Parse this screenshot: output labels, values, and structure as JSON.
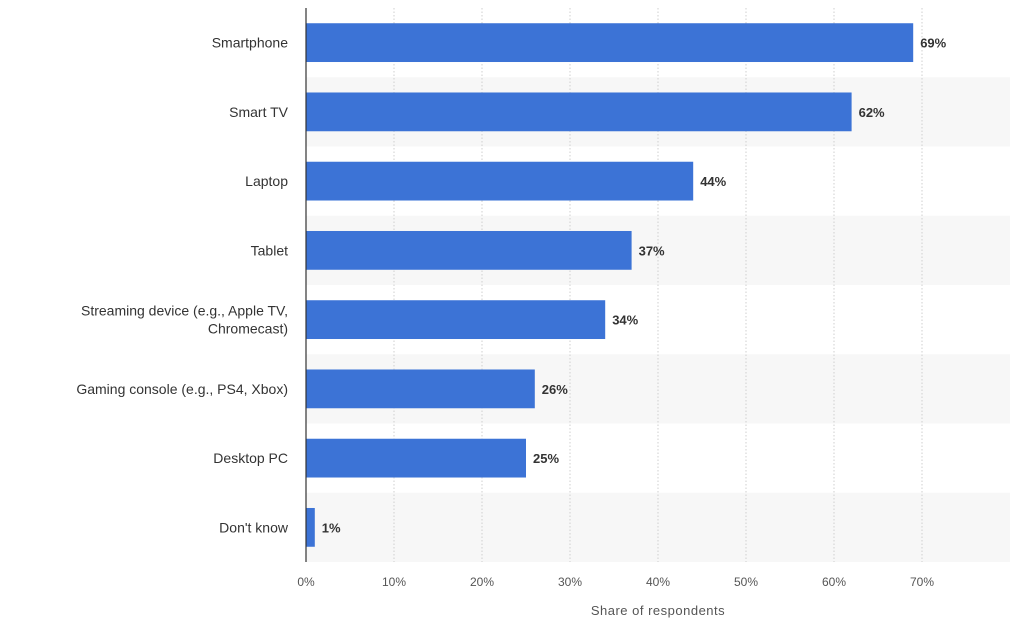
{
  "chart_data": {
    "type": "bar",
    "orientation": "horizontal",
    "categories": [
      [
        "Smartphone"
      ],
      [
        "Smart TV"
      ],
      [
        "Laptop"
      ],
      [
        "Tablet"
      ],
      [
        "Streaming device (e.g., Apple TV,",
        "Chromecast)"
      ],
      [
        "Gaming console (e.g., PS4, Xbox)"
      ],
      [
        "Desktop PC"
      ],
      [
        "Don't know"
      ]
    ],
    "values": [
      69,
      62,
      44,
      37,
      34,
      26,
      25,
      1
    ],
    "value_labels": [
      "69%",
      "62%",
      "44%",
      "37%",
      "34%",
      "26%",
      "25%",
      "1%"
    ],
    "x_ticks": [
      0,
      10,
      20,
      30,
      40,
      50,
      60,
      70
    ],
    "x_tick_labels": [
      "0%",
      "10%",
      "20%",
      "30%",
      "40%",
      "50%",
      "60%",
      "70%"
    ],
    "xlim": [
      0,
      80
    ],
    "xlabel": "Share of respondents",
    "title": "",
    "bar_color": "#3c73d6",
    "band_color": "#f7f7f7",
    "grid": true
  }
}
